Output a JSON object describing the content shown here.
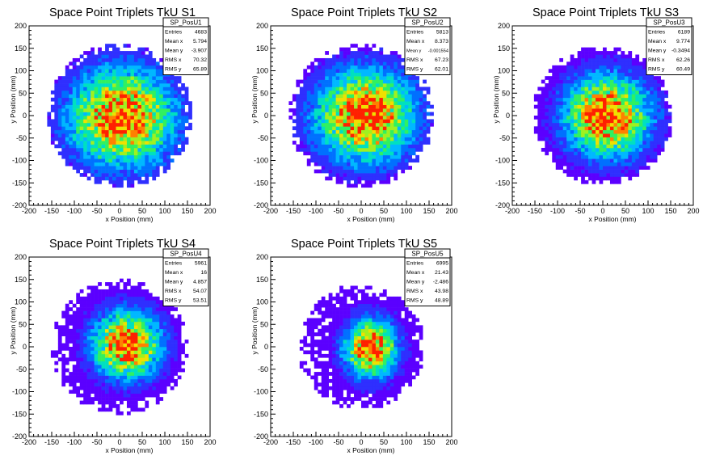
{
  "chart_data": [
    {
      "type": "heatmap",
      "title": "Space Point Triplets TkU S1",
      "xlabel": "x Position (mm)",
      "ylabel": "y Position (mm)",
      "xlim": [
        -200,
        200
      ],
      "ylim": [
        -200,
        200
      ],
      "xticks": [
        -200,
        -150,
        -100,
        -50,
        0,
        50,
        100,
        150,
        200
      ],
      "yticks": [
        -200,
        -150,
        -100,
        -50,
        0,
        50,
        100,
        150,
        200
      ],
      "stats": {
        "name": "SP_PosU1",
        "rows": [
          {
            "label": "Entries",
            "value": "4683"
          },
          {
            "label": "Mean x",
            "value": "5.794"
          },
          {
            "label": "Mean y",
            "value": "-3.907"
          },
          {
            "label": "RMS x",
            "value": "70.32"
          },
          {
            "label": "RMS y",
            "value": "65.89"
          }
        ]
      },
      "disk": {
        "cx": 5.8,
        "cy": -3.9,
        "radius": 160,
        "sigma_x": 80,
        "sigma_y": 75
      }
    },
    {
      "type": "heatmap",
      "title": "Space Point Triplets TkU S2",
      "xlabel": "x Position (mm)",
      "ylabel": "y Position (mm)",
      "xlim": [
        -200,
        200
      ],
      "ylim": [
        -200,
        200
      ],
      "xticks": [
        -200,
        -150,
        -100,
        -50,
        0,
        50,
        100,
        150,
        200
      ],
      "yticks": [
        -200,
        -150,
        -100,
        -50,
        0,
        50,
        100,
        150,
        200
      ],
      "stats": {
        "name": "SP_PosU2",
        "rows": [
          {
            "label": "Entries",
            "value": "5813"
          },
          {
            "label": "Mean x",
            "value": "8.373"
          },
          {
            "label": "Mean y",
            "value": "-0.001554"
          },
          {
            "label": "RMS x",
            "value": "67.23"
          },
          {
            "label": "RMS y",
            "value": "62.01"
          }
        ]
      },
      "disk": {
        "cx": 8.4,
        "cy": 0,
        "radius": 160,
        "sigma_x": 75,
        "sigma_y": 70
      }
    },
    {
      "type": "heatmap",
      "title": "Space Point Triplets TkU S3",
      "xlabel": "x Position (mm)",
      "ylabel": "y Position (mm)",
      "xlim": [
        -200,
        200
      ],
      "ylim": [
        -200,
        200
      ],
      "xticks": [
        -200,
        -150,
        -100,
        -50,
        0,
        50,
        100,
        150,
        200
      ],
      "yticks": [
        -200,
        -150,
        -100,
        -50,
        0,
        50,
        100,
        150,
        200
      ],
      "stats": {
        "name": "SP_PosU3",
        "rows": [
          {
            "label": "Entries",
            "value": "6189"
          },
          {
            "label": "Mean x",
            "value": "9.774"
          },
          {
            "label": "Mean y",
            "value": "-0.3494"
          },
          {
            "label": "RMS x",
            "value": "62.26"
          },
          {
            "label": "RMS y",
            "value": "60.49"
          }
        ]
      },
      "disk": {
        "cx": 9.8,
        "cy": -0.3,
        "radius": 155,
        "sigma_x": 65,
        "sigma_y": 63
      }
    },
    {
      "type": "heatmap",
      "title": "Space Point Triplets TkU S4",
      "xlabel": "x Position (mm)",
      "ylabel": "y Position (mm)",
      "xlim": [
        -200,
        200
      ],
      "ylim": [
        -200,
        200
      ],
      "xticks": [
        -200,
        -150,
        -100,
        -50,
        0,
        50,
        100,
        150,
        200
      ],
      "yticks": [
        -200,
        -150,
        -100,
        -50,
        0,
        50,
        100,
        150,
        200
      ],
      "stats": {
        "name": "SP_PosU4",
        "rows": [
          {
            "label": "Entries",
            "value": "5961"
          },
          {
            "label": "Mean x",
            "value": "16"
          },
          {
            "label": "Mean y",
            "value": "4.857"
          },
          {
            "label": "RMS x",
            "value": "54.07"
          },
          {
            "label": "RMS y",
            "value": "53.51"
          }
        ]
      },
      "disk": {
        "cx": 16,
        "cy": 4.9,
        "radius": 150,
        "sigma_x": 52,
        "sigma_y": 52
      }
    },
    {
      "type": "heatmap",
      "title": "Space Point Triplets TkU S5",
      "xlabel": "x Position (mm)",
      "ylabel": "y Position (mm)",
      "xlim": [
        -200,
        200
      ],
      "ylim": [
        -200,
        200
      ],
      "xticks": [
        -200,
        -150,
        -100,
        -50,
        0,
        50,
        100,
        150,
        200
      ],
      "yticks": [
        -200,
        -150,
        -100,
        -50,
        0,
        50,
        100,
        150,
        200
      ],
      "stats": {
        "name": "SP_PosU5",
        "rows": [
          {
            "label": "Entries",
            "value": "6995"
          },
          {
            "label": "Mean x",
            "value": "21.43"
          },
          {
            "label": "Mean y",
            "value": "-2.486"
          },
          {
            "label": "RMS x",
            "value": "43.98"
          },
          {
            "label": "RMS y",
            "value": "48.89"
          }
        ]
      },
      "disk": {
        "cx": 21.4,
        "cy": -2.5,
        "radius": 140,
        "sigma_x": 40,
        "sigma_y": 45
      }
    }
  ],
  "colors": {
    "palette": [
      "#5b00ff",
      "#2f2fff",
      "#0070ff",
      "#00b8ff",
      "#00e0c0",
      "#30f060",
      "#a0f020",
      "#f0e000",
      "#ff8000",
      "#ff2000"
    ]
  }
}
